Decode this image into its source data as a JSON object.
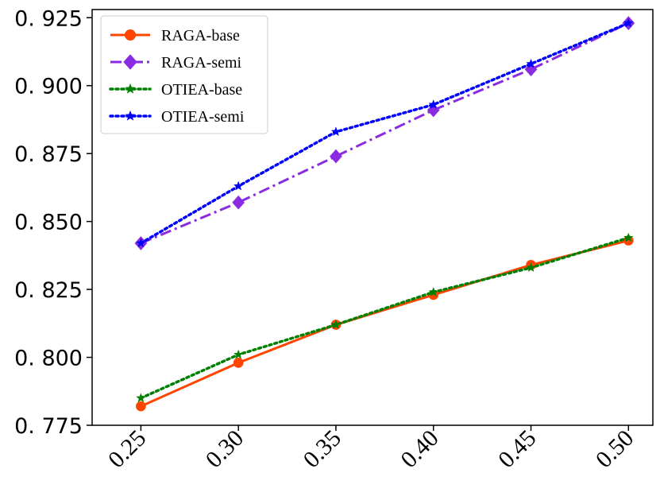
{
  "chart_data": {
    "type": "line",
    "title": "",
    "xlabel": "",
    "ylabel": "",
    "x": [
      0.25,
      0.3,
      0.35,
      0.4,
      0.45,
      0.5
    ],
    "x_tick_labels": [
      "0.25",
      "0.30",
      "0.35",
      "0.40",
      "0.45",
      "0.50"
    ],
    "y_ticks": [
      0.775,
      0.8,
      0.825,
      0.85,
      0.875,
      0.9,
      0.925
    ],
    "y_tick_labels": [
      "0. 775",
      "0. 800",
      "0. 825",
      "0. 850",
      "0. 875",
      "0. 900",
      "0. 925"
    ],
    "ylim": [
      0.775,
      0.928
    ],
    "xlim": [
      0.225,
      0.5125
    ],
    "grid": false,
    "legend_position": "top-left",
    "series": [
      {
        "name": "RAGA-base",
        "color": "#ff4500",
        "style": "solid",
        "marker": "circle",
        "values": [
          0.782,
          0.798,
          0.812,
          0.823,
          0.834,
          0.843
        ]
      },
      {
        "name": "RAGA-semi",
        "color": "#8a2be2",
        "style": "dashdot",
        "marker": "diamond",
        "values": [
          0.842,
          0.857,
          0.874,
          0.891,
          0.906,
          0.923
        ]
      },
      {
        "name": "OTIEA-base",
        "color": "#008000",
        "style": "dotted",
        "marker": "star",
        "values": [
          0.785,
          0.801,
          0.812,
          0.824,
          0.833,
          0.844
        ]
      },
      {
        "name": "OTIEA-semi",
        "color": "#0000ff",
        "style": "dotted",
        "marker": "star",
        "values": [
          0.842,
          0.863,
          0.883,
          0.893,
          0.908,
          0.923
        ]
      }
    ]
  }
}
